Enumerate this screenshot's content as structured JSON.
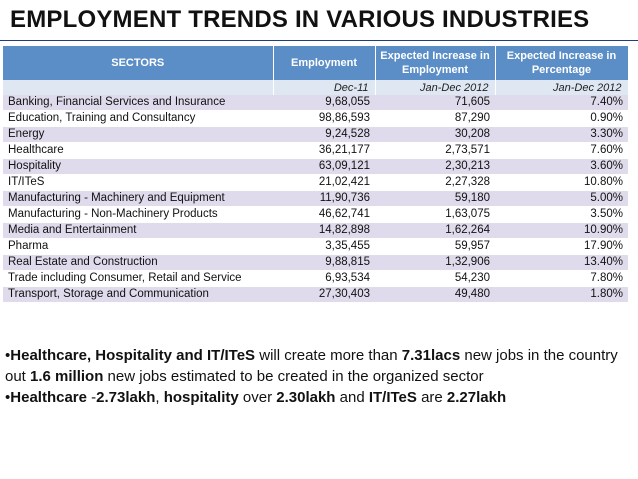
{
  "title": "EMPLOYMENT TRENDS IN VARIOUS INDUSTRIES",
  "table": {
    "headers": [
      "SECTORS",
      "Employment",
      "Expected Increase in Employment",
      "Expected Increase in Percentage"
    ],
    "subheaders": [
      "",
      "Dec-11",
      "Jan-Dec 2012",
      "Jan-Dec 2012"
    ],
    "rows": [
      [
        "Banking, Financial Services and Insurance",
        "9,68,055",
        "71,605",
        "7.40%"
      ],
      [
        "Education, Training and Consultancy",
        "98,86,593",
        "87,290",
        "0.90%"
      ],
      [
        "Energy",
        "9,24,528",
        "30,208",
        "3.30%"
      ],
      [
        "Healthcare",
        "36,21,177",
        "2,73,571",
        "7.60%"
      ],
      [
        "Hospitality",
        "63,09,121",
        "2,30,213",
        "3.60%"
      ],
      [
        "IT/ITeS",
        "21,02,421",
        "2,27,328",
        "10.80%"
      ],
      [
        "Manufacturing - Machinery and Equipment",
        "11,90,736",
        "59,180",
        "5.00%"
      ],
      [
        "Manufacturing - Non-Machinery Products",
        "46,62,741",
        "1,63,075",
        "3.50%"
      ],
      [
        "Media and Entertainment",
        "14,82,898",
        "1,62,264",
        "10.90%"
      ],
      [
        "Pharma",
        "3,35,455",
        "59,957",
        "17.90%"
      ],
      [
        "Real Estate and Construction",
        "9,88,815",
        "1,32,906",
        "13.40%"
      ],
      [
        "Trade including Consumer, Retail and Service",
        "6,93,534",
        "54,230",
        "7.80%"
      ],
      [
        "Transport, Storage and Communication",
        "27,30,403",
        "49,480",
        "1.80%"
      ]
    ]
  },
  "notes": {
    "b1_bullet": "•",
    "b1_bold1": "Healthcare, Hospitality and IT/ITeS",
    "b1_t1": " will create more than ",
    "b1_bold2": "7.31lacs",
    "b1_t2": " new jobs in the country out ",
    "b1_bold3": "1.6 million",
    "b1_t3": " new jobs estimated to be created in the organized sector",
    "b2_bullet": "•",
    "b2_bold1": "Healthcare",
    "b2_t1": " -",
    "b2_bold2": "2.73lakh",
    "b2_t2": ", ",
    "b2_bold3": "hospitality",
    "b2_t3": " over ",
    "b2_bold4": "2.30lakh",
    "b2_t4": "  and ",
    "b2_bold5": "IT/ITeS",
    "b2_t5": " are ",
    "b2_bold6": "2.27lakh"
  }
}
